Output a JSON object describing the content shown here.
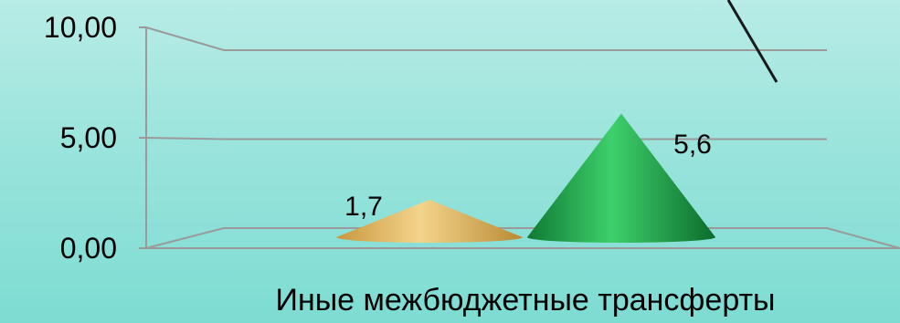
{
  "chart_data": {
    "type": "bar",
    "categories": [
      "Иные межбюджетные трансферты"
    ],
    "series": [
      {
        "values": [
          1.7
        ],
        "color": "#e2b45c",
        "shape": "cone"
      },
      {
        "values": [
          5.6
        ],
        "color": "#1da64a",
        "shape": "cone"
      }
    ],
    "data_labels": [
      "1,7",
      "5,6"
    ],
    "y_ticks": [
      "0,00",
      "5,00",
      "10,00"
    ],
    "y_tick_values": [
      0,
      5,
      10
    ],
    "ylim": [
      0,
      10
    ],
    "grid": true,
    "legend": "none",
    "colors": {
      "gridline": "#9a9a9a",
      "axis_line": "#1a1a1a"
    }
  }
}
